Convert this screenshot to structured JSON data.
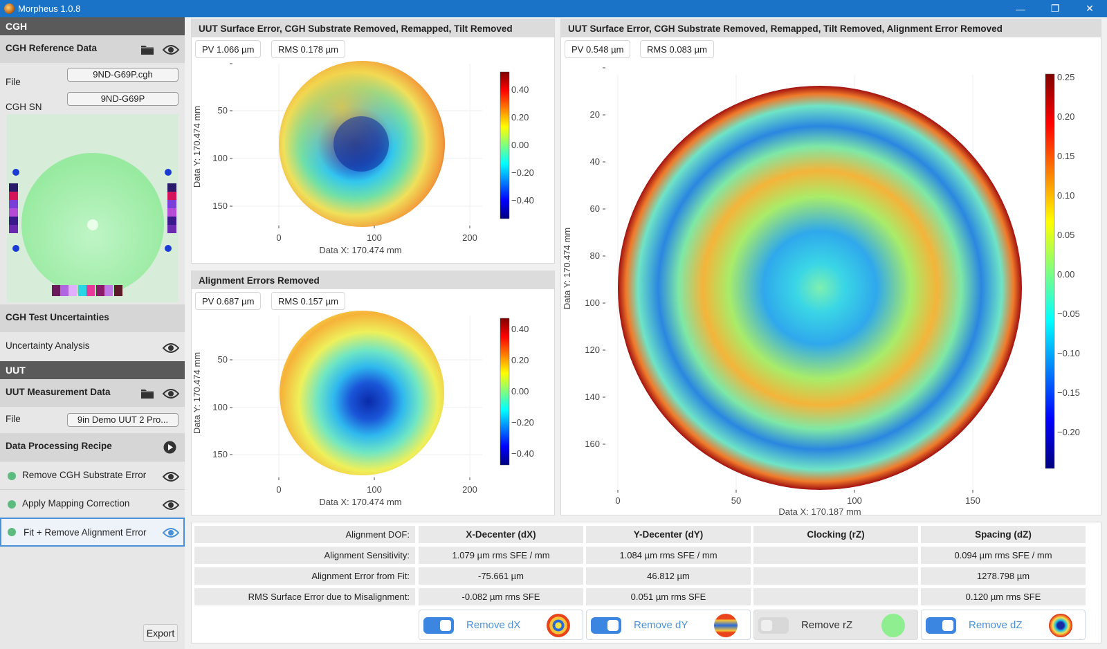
{
  "window": {
    "title": "Morpheus 1.0.8",
    "minimize": "—",
    "restore": "❐",
    "close": "✕"
  },
  "sidebar": {
    "cgh_section": "CGH",
    "cgh_reference": {
      "title": "CGH Reference Data",
      "file_label": "File",
      "file_value": "9ND-G69P.cgh",
      "sn_label": "CGH SN",
      "sn_value": "9ND-G69P"
    },
    "cgh_test_uncertainties": "CGH Test Uncertainties",
    "uncertainty_analysis": "Uncertainty Analysis",
    "uut_section": "UUT",
    "uut_measurement": {
      "title": "UUT Measurement Data",
      "file_label": "File",
      "file_value": "9in Demo UUT 2 Pro..."
    },
    "recipe_title": "Data Processing Recipe",
    "steps": [
      "Remove CGH Substrate Error",
      "Apply Mapping Correction",
      "Fit + Remove Alignment Error"
    ],
    "export_label": "Export"
  },
  "colors": {
    "accent": "#1a73c7",
    "active_step_border": "#4a90d9",
    "step_dot": "#5dbb7f"
  },
  "plots": {
    "top_left": {
      "title": "UUT Surface Error, CGH Substrate Removed, Remapped, Tilt Removed",
      "pv": "PV 1.066 µm",
      "rms": "RMS 0.178 µm",
      "xlabel": "Data X: 170.474 mm",
      "ylabel": "Data Y: 170.474 mm",
      "xticks": [
        "0",
        "100",
        "200"
      ],
      "yticks": [
        "50",
        "100",
        "150"
      ],
      "cbar_ticks": [
        "0.40",
        "0.20",
        "0.00",
        "−0.20",
        "−0.40"
      ]
    },
    "bottom_left": {
      "title": "Alignment Errors Removed",
      "pv": "PV 0.687 µm",
      "rms": "RMS 0.157 µm",
      "xlabel": "Data X: 170.474 mm",
      "ylabel": "Data Y: 170.474 mm",
      "xticks": [
        "0",
        "100",
        "200"
      ],
      "yticks": [
        "50",
        "100",
        "150"
      ],
      "cbar_ticks": [
        "0.40",
        "0.20",
        "0.00",
        "−0.20",
        "−0.40"
      ]
    },
    "right": {
      "title": "UUT Surface Error, CGH Substrate Removed, Remapped, Tilt Removed, Alignment Error Removed",
      "pv": "PV 0.548 µm",
      "rms": "RMS 0.083 µm",
      "xlabel": "Data X: 170.187 mm",
      "ylabel": "Data Y: 170.474 mm",
      "xticks": [
        "0",
        "50",
        "100",
        "150"
      ],
      "yticks": [
        "20",
        "40",
        "60",
        "80",
        "100",
        "120",
        "140",
        "160"
      ],
      "cbar_ticks": [
        "0.25",
        "0.20",
        "0.15",
        "0.10",
        "0.05",
        "0.00",
        "−0.05",
        "−0.10",
        "−0.15",
        "−0.20"
      ]
    }
  },
  "alignment": {
    "row_labels": [
      "Alignment DOF:",
      "Alignment Sensitivity:",
      "Alignment Error from Fit:",
      "RMS Surface Error due to Misalignment:"
    ],
    "columns": [
      {
        "header": "X-Decenter (dX)",
        "sensitivity": "1.079 µm rms SFE / mm",
        "error": "-75.661 µm",
        "rms": "-0.082 µm rms SFE",
        "toggle": "Remove dX",
        "enabled": true
      },
      {
        "header": "Y-Decenter (dY)",
        "sensitivity": "1.084 µm rms SFE / mm",
        "error": "46.812 µm",
        "rms": "0.051 µm rms SFE",
        "toggle": "Remove dY",
        "enabled": true
      },
      {
        "header": "Clocking (rZ)",
        "sensitivity": "",
        "error": "",
        "rms": "",
        "toggle": "Remove rZ",
        "enabled": false
      },
      {
        "header": "Spacing (dZ)",
        "sensitivity": "0.094 µm rms SFE / mm",
        "error": "1278.798 µm",
        "rms": "0.120 µm rms SFE",
        "toggle": "Remove dZ",
        "enabled": true
      }
    ]
  }
}
